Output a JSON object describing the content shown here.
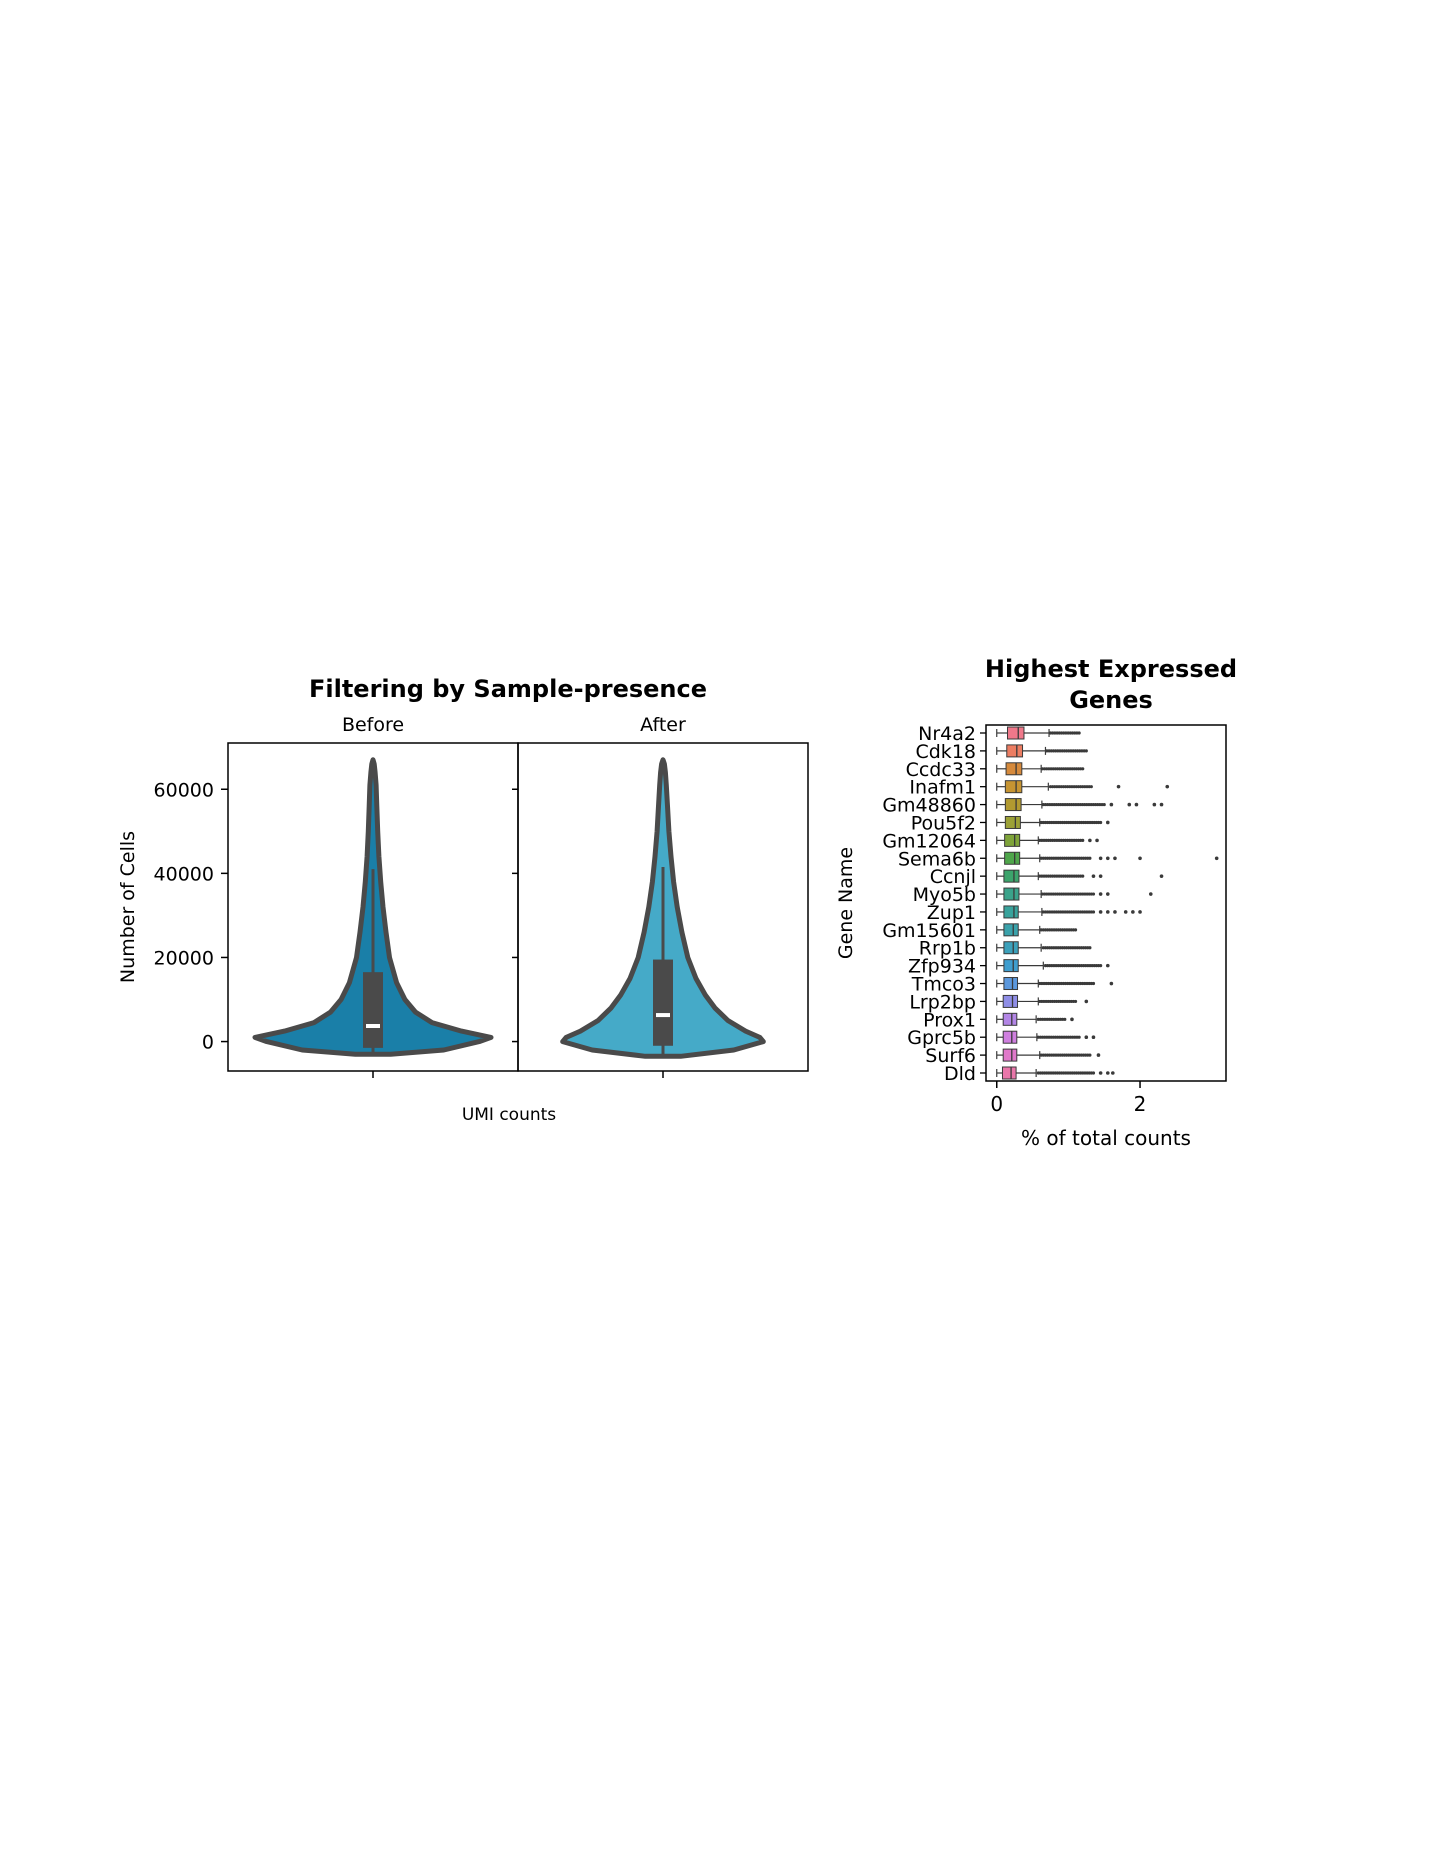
{
  "chart_data": [
    {
      "type": "violin",
      "title": "Filtering by Sample-presence",
      "xlabel": "UMI counts",
      "ylabel": "Number of Cells",
      "ylim": [
        -7000,
        71000
      ],
      "yticks": [
        0,
        20000,
        40000,
        60000
      ],
      "grid": false,
      "panels": [
        {
          "name": "Before",
          "color": "#1a7fa8",
          "min": -2500,
          "max": 67000,
          "q1": -1500,
          "median": 3700,
          "q3": 16500,
          "whisker_high": 41000,
          "density_widths": [
            [
              -3000,
              0.15
            ],
            [
              -2000,
              0.6
            ],
            [
              0,
              0.9
            ],
            [
              1000,
              1.0
            ],
            [
              2500,
              0.75
            ],
            [
              4500,
              0.5
            ],
            [
              7000,
              0.36
            ],
            [
              10000,
              0.27
            ],
            [
              14000,
              0.2
            ],
            [
              20000,
              0.14
            ],
            [
              26000,
              0.11
            ],
            [
              32000,
              0.085
            ],
            [
              38000,
              0.065
            ],
            [
              44000,
              0.05
            ],
            [
              50000,
              0.04
            ],
            [
              56000,
              0.032
            ],
            [
              61000,
              0.026
            ],
            [
              64000,
              0.018
            ],
            [
              66000,
              0.01
            ],
            [
              67000,
              0.0
            ]
          ]
        },
        {
          "name": "After",
          "color": "#45aac8",
          "min": -3000,
          "max": 67000,
          "q1": -1000,
          "median": 6300,
          "q3": 19500,
          "whisker_high": 41500,
          "density_widths": [
            [
              -3500,
              0.15
            ],
            [
              -2000,
              0.6
            ],
            [
              0,
              0.85
            ],
            [
              1000,
              0.82
            ],
            [
              2500,
              0.7
            ],
            [
              5000,
              0.55
            ],
            [
              8000,
              0.44
            ],
            [
              11000,
              0.36
            ],
            [
              15000,
              0.28
            ],
            [
              20000,
              0.21
            ],
            [
              26000,
              0.16
            ],
            [
              32000,
              0.12
            ],
            [
              38000,
              0.09
            ],
            [
              44000,
              0.068
            ],
            [
              50000,
              0.05
            ],
            [
              56000,
              0.038
            ],
            [
              61000,
              0.028
            ],
            [
              64000,
              0.02
            ],
            [
              66000,
              0.012
            ],
            [
              67000,
              0.0
            ]
          ]
        }
      ]
    },
    {
      "type": "boxplot",
      "title": "Highest Expressed Genes",
      "xlabel": "% of total counts",
      "ylabel": "Gene Name",
      "xlim": [
        -0.15,
        3.2
      ],
      "xticks": [
        0,
        2
      ],
      "grid": false,
      "genes": [
        {
          "name": "Nr4a2",
          "color": "#f0788a",
          "q1": 0.15,
          "median": 0.3,
          "q3": 0.38,
          "whisker": [
            0,
            0.73
          ],
          "outlier_range": [
            0.75,
            1.15
          ],
          "far_outliers": []
        },
        {
          "name": "Cdk18",
          "color": "#ec7d62",
          "q1": 0.14,
          "median": 0.28,
          "q3": 0.36,
          "whisker": [
            0,
            0.68
          ],
          "outlier_range": [
            0.7,
            1.25
          ],
          "far_outliers": []
        },
        {
          "name": "Ccdc33",
          "color": "#d68a3c",
          "q1": 0.13,
          "median": 0.27,
          "q3": 0.35,
          "whisker": [
            0,
            0.62
          ],
          "outlier_range": [
            0.64,
            1.2
          ],
          "far_outliers": []
        },
        {
          "name": "Inafm1",
          "color": "#c69432",
          "q1": 0.12,
          "median": 0.27,
          "q3": 0.35,
          "whisker": [
            0,
            0.72
          ],
          "outlier_range": [
            0.75,
            1.32
          ],
          "far_outliers": [
            1.7,
            2.38
          ]
        },
        {
          "name": "Gm48860",
          "color": "#b29a30",
          "q1": 0.12,
          "median": 0.27,
          "q3": 0.34,
          "whisker": [
            0,
            0.63
          ],
          "outlier_range": [
            0.65,
            1.5
          ],
          "far_outliers": [
            1.6,
            1.85,
            1.95,
            2.2,
            2.3
          ]
        },
        {
          "name": "Pou5f2",
          "color": "#9ca136",
          "q1": 0.12,
          "median": 0.26,
          "q3": 0.33,
          "whisker": [
            0,
            0.6
          ],
          "outlier_range": [
            0.62,
            1.45
          ],
          "far_outliers": [
            1.55
          ]
        },
        {
          "name": "Gm12064",
          "color": "#7fa43a",
          "q1": 0.11,
          "median": 0.25,
          "q3": 0.32,
          "whisker": [
            0,
            0.58
          ],
          "outlier_range": [
            0.6,
            1.2
          ],
          "far_outliers": [
            1.3,
            1.4
          ]
        },
        {
          "name": "Sema6b",
          "color": "#4fa64b",
          "q1": 0.11,
          "median": 0.25,
          "q3": 0.32,
          "whisker": [
            0,
            0.6
          ],
          "outlier_range": [
            0.62,
            1.3
          ],
          "far_outliers": [
            1.45,
            1.55,
            1.65,
            2.0,
            3.07
          ]
        },
        {
          "name": "Ccnjl",
          "color": "#3ca46c",
          "q1": 0.1,
          "median": 0.24,
          "q3": 0.31,
          "whisker": [
            0,
            0.58
          ],
          "outlier_range": [
            0.6,
            1.2
          ],
          "far_outliers": [
            1.35,
            1.45,
            2.3
          ]
        },
        {
          "name": "Myo5b",
          "color": "#3aa38a",
          "q1": 0.1,
          "median": 0.24,
          "q3": 0.31,
          "whisker": [
            0,
            0.62
          ],
          "outlier_range": [
            0.64,
            1.35
          ],
          "far_outliers": [
            1.45,
            1.55,
            2.15
          ]
        },
        {
          "name": "Zup1",
          "color": "#39a39c",
          "q1": 0.1,
          "median": 0.24,
          "q3": 0.3,
          "whisker": [
            0,
            0.63
          ],
          "outlier_range": [
            0.65,
            1.35
          ],
          "far_outliers": [
            1.45,
            1.55,
            1.65,
            1.8,
            1.9,
            2.0
          ]
        },
        {
          "name": "Gm15601",
          "color": "#3aa2ab",
          "q1": 0.1,
          "median": 0.23,
          "q3": 0.3,
          "whisker": [
            0,
            0.6
          ],
          "outlier_range": [
            0.62,
            1.1
          ],
          "far_outliers": []
        },
        {
          "name": "Rrp1b",
          "color": "#3ca1bb",
          "q1": 0.1,
          "median": 0.23,
          "q3": 0.3,
          "whisker": [
            0,
            0.62
          ],
          "outlier_range": [
            0.65,
            1.3
          ],
          "far_outliers": []
        },
        {
          "name": "Zfp934",
          "color": "#3f9ecf",
          "q1": 0.1,
          "median": 0.23,
          "q3": 0.3,
          "whisker": [
            0,
            0.65
          ],
          "outlier_range": [
            0.68,
            1.45
          ],
          "far_outliers": [
            1.55
          ]
        },
        {
          "name": "Tmco3",
          "color": "#5b98dd",
          "q1": 0.1,
          "median": 0.22,
          "q3": 0.29,
          "whisker": [
            0,
            0.58
          ],
          "outlier_range": [
            0.6,
            1.35
          ],
          "far_outliers": [
            1.6
          ]
        },
        {
          "name": "Lrp2bp",
          "color": "#8f8ee6",
          "q1": 0.09,
          "median": 0.22,
          "q3": 0.29,
          "whisker": [
            0,
            0.58
          ],
          "outlier_range": [
            0.6,
            1.1
          ],
          "far_outliers": [
            1.25
          ]
        },
        {
          "name": "Prox1",
          "color": "#b386e6",
          "q1": 0.09,
          "median": 0.21,
          "q3": 0.28,
          "whisker": [
            0,
            0.55
          ],
          "outlier_range": [
            0.58,
            0.95
          ],
          "far_outliers": [
            1.05
          ]
        },
        {
          "name": "Gprc5b",
          "color": "#cf7fdf",
          "q1": 0.09,
          "median": 0.21,
          "q3": 0.28,
          "whisker": [
            0,
            0.56
          ],
          "outlier_range": [
            0.58,
            1.15
          ],
          "far_outliers": [
            1.25,
            1.35
          ]
        },
        {
          "name": "Surf6",
          "color": "#e078ca",
          "q1": 0.09,
          "median": 0.21,
          "q3": 0.28,
          "whisker": [
            0,
            0.6
          ],
          "outlier_range": [
            0.62,
            1.3
          ],
          "far_outliers": [
            1.42
          ]
        },
        {
          "name": "Dld",
          "color": "#ea77aa",
          "q1": 0.08,
          "median": 0.2,
          "q3": 0.27,
          "whisker": [
            0,
            0.55
          ],
          "outlier_range": [
            0.58,
            1.35
          ],
          "far_outliers": [
            1.45,
            1.55,
            1.62
          ]
        }
      ]
    }
  ]
}
